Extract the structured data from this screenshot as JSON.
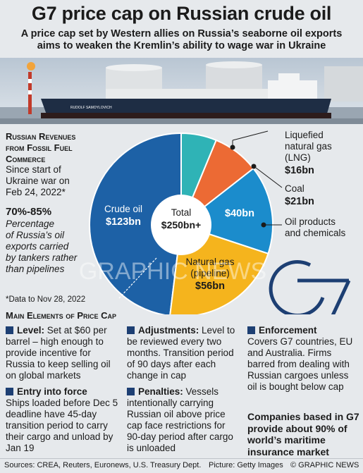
{
  "header": {
    "title": "G7 price cap on Russian crude oil",
    "subtitle": "A price cap set by Western allies on Russia’s seaborne oil exports aims to weaken the Kremlin’s ability to wage war in Ukraine"
  },
  "photo": {
    "ship_name": "RUDOLF SAMOYLOVICH"
  },
  "revenues": {
    "title_line1": "Russian Revenues",
    "title_line2": "from Fossil Fuel",
    "title_line3": "Commerce",
    "since_line1": "Since start of",
    "since_line2": "Ukraine war on",
    "since_line3": "Feb 24, 2022*",
    "pct": "70%-85%",
    "pct_desc_line1": "Percentage",
    "pct_desc_line2": "of Russia’s oil",
    "pct_desc_line3": "exports carried",
    "pct_desc_line4": "by tankers rather",
    "pct_desc_line5": "than pipelines",
    "footnote": "*Data to Nov 28, 2022"
  },
  "chart_data": {
    "type": "pie",
    "title": "Russian Revenues from Fossil Fuel Commerce",
    "total_label": "Total",
    "total_value": "$250bn+",
    "unit": "bn USD",
    "slices": [
      {
        "name": "Crude oil",
        "value": 123,
        "display": "$123bn",
        "color": "#1d61a6"
      },
      {
        "name": "Liquefied natural gas (LNG)",
        "value": 16,
        "display": "$16bn",
        "color": "#2fb3b6"
      },
      {
        "name": "Coal",
        "value": 21,
        "display": "$21bn",
        "color": "#ec6a34"
      },
      {
        "name": "Oil products and chemicals",
        "value": 40,
        "display": "$40bn",
        "color": "#1b8ccc"
      },
      {
        "name": "Natural gas (pipeline)",
        "value": 56,
        "display": "$56bn",
        "color": "#f5b41d"
      }
    ],
    "labels": {
      "crude": "Crude oil",
      "crude_val": "$123bn",
      "lng_line1": "Liquefied",
      "lng_line2": "natural gas",
      "lng_line3": "(LNG)",
      "lng_val": "$16bn",
      "coal": "Coal",
      "coal_val": "$21bn",
      "oilprod_val": "$40bn",
      "oilprod_line1": "Oil products",
      "oilprod_line2": "and chemicals",
      "natgas_line1": "Natural gas",
      "natgas_line2": "(pipeline)",
      "natgas_val": "$56bn"
    }
  },
  "watermark": {
    "text": "GRAPHIC NEWS"
  },
  "logo": {
    "text": "G7"
  },
  "elements": {
    "title": "Main Elements of Price Cap",
    "level_head": "Level:",
    "level_text": " Set at $60 per barrel – high enough to provide incentive for Russia to keep selling oil on global markets",
    "entry_head": "Entry into force",
    "entry_text": "Ships loaded before Dec 5 deadline have 45-day transition period to carry their cargo and unload by Jan 19",
    "adjust_head": "Adjustments:",
    "adjust_text": " Level to be reviewed every two months. Transition period of 90 days after each change in cap",
    "penalty_head": "Penalties:",
    "penalty_text": " Vessels intentionally carrying Russian oil above price cap face restrictions for 90-day period after cargo is unloaded",
    "enforce_head": "Enforcement",
    "enforce_text": "Covers G7 countries, EU and Australia. Firms barred from dealing with Russian cargoes unless oil is bought below cap",
    "companies": "Companies based in G7 provide about 90% of world’s maritime insurance market"
  },
  "footer": {
    "sources": "Sources: CREA, Reuters, Euronews, U.S. Treasury Dept.",
    "picture": "Picture: Getty Images",
    "credit": "© GRAPHIC NEWS"
  }
}
